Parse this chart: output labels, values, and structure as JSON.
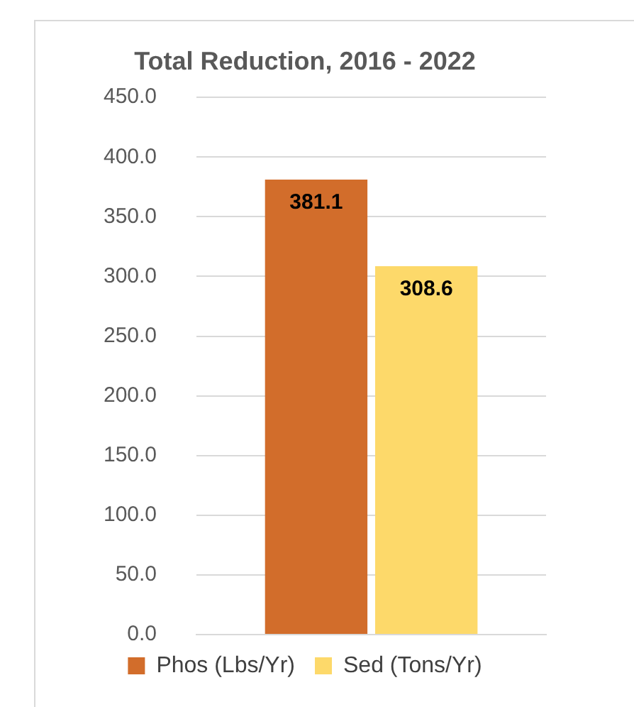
{
  "chart_data": {
    "type": "bar",
    "title": "Total Reduction, 2016 - 2022",
    "categories": [
      null
    ],
    "series": [
      {
        "name": "Phos (Lbs/Yr)",
        "color": "#d26d2b",
        "values": [
          381.1
        ]
      },
      {
        "name": "Sed (Tons/Yr)",
        "color": "#fdd96a",
        "values": [
          308.6
        ]
      }
    ],
    "ylim": [
      0,
      450
    ],
    "yticks": [
      {
        "value": 0,
        "label": "0.0"
      },
      {
        "value": 50,
        "label": "50.0"
      },
      {
        "value": 100,
        "label": "100.0"
      },
      {
        "value": 150,
        "label": "150.0"
      },
      {
        "value": 200,
        "label": "200.0"
      },
      {
        "value": 250,
        "label": "250.0"
      },
      {
        "value": 300,
        "label": "300.0"
      },
      {
        "value": 350,
        "label": "350.0"
      },
      {
        "value": 400,
        "label": "400.0"
      },
      {
        "value": 450,
        "label": "450.0"
      }
    ],
    "grid": "y",
    "legend": "bottom",
    "data_labels": true
  }
}
